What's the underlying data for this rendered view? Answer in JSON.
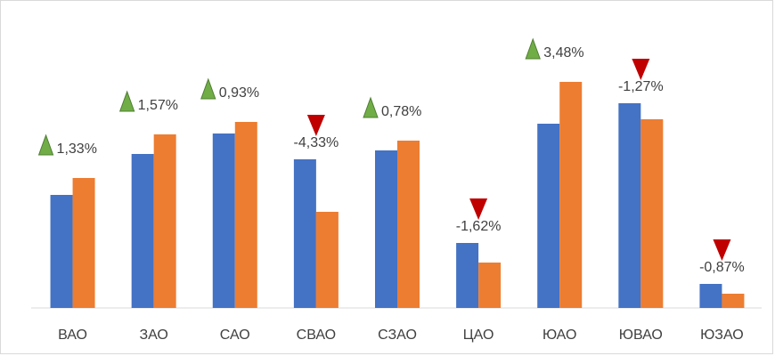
{
  "chart_data": {
    "type": "bar",
    "title": "",
    "xlabel": "",
    "ylabel": "",
    "grid": false,
    "legend": "none",
    "categories": [
      "ВАО",
      "ЗАО",
      "САО",
      "СВАО",
      "СЗАО",
      "ЦАО",
      "ЮАО",
      "ЮВАО",
      "ЮЗАО"
    ],
    "series": [
      {
        "name": "series-1",
        "color": "#4472C4",
        "values": [
          127,
          173,
          196,
          167,
          177,
          73,
          207,
          230,
          27
        ]
      },
      {
        "name": "series-2",
        "color": "#ED7D31",
        "values": [
          146,
          195,
          209,
          108,
          188,
          51,
          254,
          212,
          16
        ]
      }
    ],
    "ylim": [
      0,
      270
    ],
    "changes": [
      {
        "label": "1,33%",
        "direction": "up"
      },
      {
        "label": "1,57%",
        "direction": "up"
      },
      {
        "label": "0,93%",
        "direction": "up"
      },
      {
        "label": "-4,33%",
        "direction": "down"
      },
      {
        "label": "0,78%",
        "direction": "up"
      },
      {
        "label": "-1,62%",
        "direction": "down"
      },
      {
        "label": "3,48%",
        "direction": "up"
      },
      {
        "label": "-1,27%",
        "direction": "down"
      },
      {
        "label": "-0,87%",
        "direction": "down"
      }
    ],
    "colors": {
      "up": "#70AD47",
      "down": "#C00000",
      "axis": "#d9d9d9"
    }
  }
}
